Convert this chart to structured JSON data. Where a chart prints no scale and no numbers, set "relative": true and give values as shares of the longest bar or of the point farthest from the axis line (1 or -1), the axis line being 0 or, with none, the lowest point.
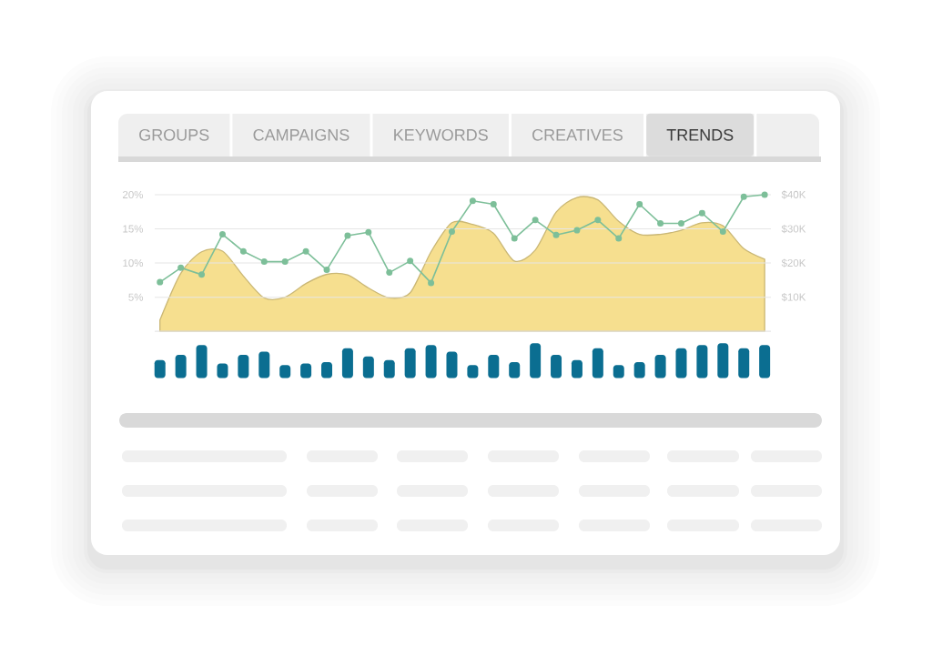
{
  "chart_data": [
    {
      "type": "other",
      "title": "TRENDS",
      "annotations": [
        "GROUPS",
        "CAMPAIGNS",
        "KEYWORDS",
        "CREATIVES"
      ]
    },
    {
      "type": "line",
      "categories": [
        null,
        null,
        null,
        null,
        null,
        null,
        null,
        null,
        null,
        null,
        null,
        null,
        null,
        null,
        null,
        null,
        null,
        null,
        null,
        null,
        null,
        null,
        null,
        null,
        null,
        null,
        null,
        null,
        null,
        null
      ],
      "series": [
        {
          "type": "area",
          "color": "#f6df8f",
          "axis": "y2",
          "values": [
            3.3,
            17,
            23.3,
            23.5,
            16.2,
            9.8,
            10,
            14,
            16.7,
            16.5,
            12.7,
            9.8,
            11.3,
            23.3,
            31.8,
            31.3,
            28.7,
            20.6,
            23.8,
            34.9,
            39.2,
            38.5,
            32.2,
            28.4,
            28.4,
            29.6,
            31.8,
            30.9,
            24.2,
            21.1
          ]
        },
        {
          "type": "line",
          "color": "#7dbf99",
          "marker": "circle",
          "values": [
            7.2,
            9.3,
            8.3,
            14.2,
            11.7,
            10.2,
            10.2,
            11.7,
            9.0,
            14.0,
            14.5,
            8.6,
            10.3,
            7.1,
            14.6,
            19.1,
            18.6,
            13.6,
            16.3,
            14.1,
            14.8,
            16.3,
            13.6,
            18.6,
            15.8,
            15.8,
            17.3,
            14.6,
            19.7,
            20
          ]
        }
      ],
      "ylim": [
        0,
        20
      ],
      "yticks": [
        {
          "value": 5,
          "label": "5%"
        },
        {
          "value": 10,
          "label": "10%"
        },
        {
          "value": 15,
          "label": "15%"
        },
        {
          "value": 20,
          "label": "20%"
        }
      ],
      "y2lim": [
        0,
        40
      ],
      "y2ticks": [
        {
          "value": 10,
          "label": "$10K"
        },
        {
          "value": 20,
          "label": "$20K"
        },
        {
          "value": 30,
          "label": "$30K"
        },
        {
          "value": 40,
          "label": "$40K"
        }
      ],
      "grid": "y"
    },
    {
      "type": "bar",
      "relative": true,
      "color": "#0b6e91",
      "categories": [
        null,
        null,
        null,
        null,
        null,
        null,
        null,
        null,
        null,
        null,
        null,
        null,
        null,
        null,
        null,
        null,
        null,
        null,
        null,
        null,
        null,
        null,
        null,
        null,
        null,
        null,
        null,
        null,
        null,
        null
      ],
      "values": [
        0.52,
        0.67,
        0.95,
        0.42,
        0.67,
        0.76,
        0.37,
        0.42,
        0.46,
        0.86,
        0.62,
        0.52,
        0.86,
        0.95,
        0.76,
        0.37,
        0.67,
        0.46,
        1,
        0.67,
        0.52,
        0.86,
        0.37,
        0.46,
        0.67,
        0.86,
        0.95,
        1,
        0.86,
        0.95
      ]
    }
  ]
}
